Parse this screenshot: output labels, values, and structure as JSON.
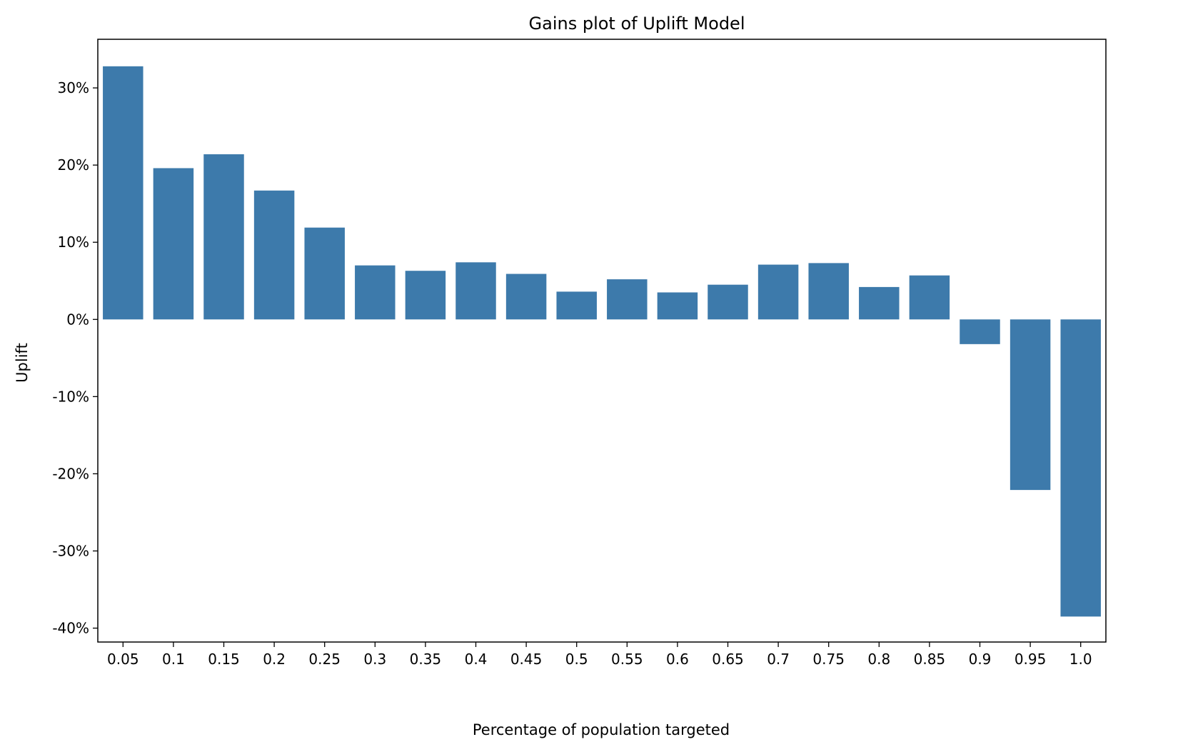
{
  "chart_data": {
    "type": "bar",
    "title": "Gains plot of Uplift Model",
    "xlabel": "Percentage of population targeted",
    "ylabel": "Uplift",
    "categories": [
      "0.05",
      "0.1",
      "0.15",
      "0.2",
      "0.25",
      "0.3",
      "0.35",
      "0.4",
      "0.45",
      "0.5",
      "0.55",
      "0.6",
      "0.65",
      "0.7",
      "0.75",
      "0.8",
      "0.85",
      "0.9",
      "0.95",
      "1.0"
    ],
    "values": [
      32.8,
      19.6,
      21.4,
      16.7,
      11.9,
      7.0,
      6.3,
      7.4,
      5.9,
      3.6,
      5.2,
      3.5,
      4.5,
      7.1,
      7.3,
      4.2,
      5.7,
      -3.2,
      -22.1,
      -38.5
    ],
    "ylim": [
      -41.8,
      36.3
    ],
    "yticks": [
      30,
      20,
      10,
      0,
      -10,
      -20,
      -30,
      -40
    ],
    "ytick_labels": [
      "30%",
      "20%",
      "10%",
      "0%",
      "-10%",
      "-20%",
      "-30%",
      "-40%"
    ],
    "grid": false,
    "bar_color": "#3d7aab"
  }
}
